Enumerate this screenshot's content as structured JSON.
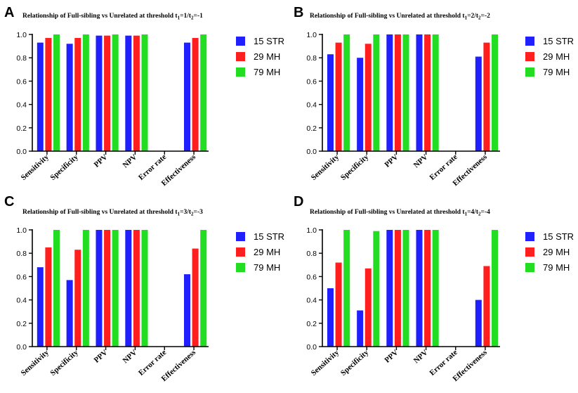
{
  "series_colors": [
    "#1f1fff",
    "#ff1f1f",
    "#22dd22"
  ],
  "chart_data": [
    {
      "type": "bar",
      "panel": "A",
      "title_main": "Relationship of Full-sibling vs Unrelated at threshold t",
      "title_sub1": "1",
      "title_mid": "=1/t",
      "title_sub2": "2",
      "title_end": "=-1",
      "categories": [
        "Sensitivity",
        "Specificity",
        "PPV",
        "NPV",
        "Error rate",
        "Effectiveness"
      ],
      "ylim": [
        0,
        1.0
      ],
      "yticks": [
        "0.0",
        "0.2",
        "0.4",
        "0.6",
        "0.8",
        "1.0"
      ],
      "series": [
        {
          "name": "15 STR",
          "values": [
            0.93,
            0.92,
            0.99,
            0.99,
            0,
            0.93
          ]
        },
        {
          "name": "29 MH",
          "values": [
            0.97,
            0.97,
            0.99,
            0.99,
            0,
            0.97
          ]
        },
        {
          "name": "79 MH",
          "values": [
            1.0,
            1.0,
            1.0,
            1.0,
            0,
            1.0
          ]
        }
      ]
    },
    {
      "type": "bar",
      "panel": "B",
      "title_main": "Relationship of Full-sibling vs Unrelated at threshold t",
      "title_sub1": "1",
      "title_mid": "=2/t",
      "title_sub2": "2",
      "title_end": "=-2",
      "categories": [
        "Sensitivity",
        "Specificity",
        "PPV",
        "NPV",
        "Error rate",
        "Effectiveness"
      ],
      "ylim": [
        0,
        1.0
      ],
      "yticks": [
        "0.0",
        "0.2",
        "0.4",
        "0.6",
        "0.8",
        "1.0"
      ],
      "series": [
        {
          "name": "15 STR",
          "values": [
            0.83,
            0.8,
            1.0,
            1.0,
            0,
            0.81
          ]
        },
        {
          "name": "29 MH",
          "values": [
            0.93,
            0.92,
            1.0,
            1.0,
            0,
            0.93
          ]
        },
        {
          "name": "79 MH",
          "values": [
            1.0,
            1.0,
            1.0,
            1.0,
            0,
            1.0
          ]
        }
      ]
    },
    {
      "type": "bar",
      "panel": "C",
      "title_main": "Relationship of Full-sibling vs Unrelated at threshold t",
      "title_sub1": "1",
      "title_mid": "=3/t",
      "title_sub2": "2",
      "title_end": "=-3",
      "categories": [
        "Sensitivity",
        "Specificity",
        "PPV",
        "NPV",
        "Error rate",
        "Effectiveness"
      ],
      "ylim": [
        0,
        1.0
      ],
      "yticks": [
        "0.0",
        "0.2",
        "0.4",
        "0.6",
        "0.8",
        "1.0"
      ],
      "series": [
        {
          "name": "15 STR",
          "values": [
            0.68,
            0.57,
            1.0,
            1.0,
            0,
            0.62
          ]
        },
        {
          "name": "29 MH",
          "values": [
            0.85,
            0.83,
            1.0,
            1.0,
            0,
            0.84
          ]
        },
        {
          "name": "79 MH",
          "values": [
            1.0,
            1.0,
            1.0,
            1.0,
            0,
            1.0
          ]
        }
      ]
    },
    {
      "type": "bar",
      "panel": "D",
      "title_main": "Relationship of Full-sibling vs Unrelated at threshold t",
      "title_sub1": "1",
      "title_mid": "=4/t",
      "title_sub2": "2",
      "title_end": "=-4",
      "categories": [
        "Sensitivity",
        "Specificity",
        "PPV",
        "NPV",
        "Error rate",
        "Effectiveness"
      ],
      "ylim": [
        0,
        1.0
      ],
      "yticks": [
        "0.0",
        "0.2",
        "0.4",
        "0.6",
        "0.8",
        "1.0"
      ],
      "series": [
        {
          "name": "15 STR",
          "values": [
            0.5,
            0.31,
            1.0,
            1.0,
            0,
            0.4
          ]
        },
        {
          "name": "29 MH",
          "values": [
            0.72,
            0.67,
            1.0,
            1.0,
            0,
            0.69
          ]
        },
        {
          "name": "79 MH",
          "values": [
            1.0,
            0.99,
            1.0,
            1.0,
            0,
            1.0
          ]
        }
      ]
    }
  ]
}
